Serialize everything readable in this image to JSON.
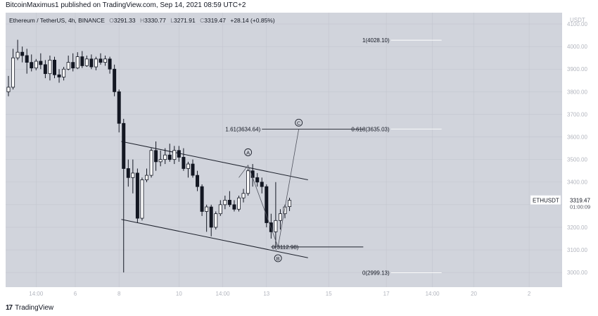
{
  "header": {
    "published_text": "BitcoinMaximus1 published on TradingView.com, Sep 14, 2021 08:59 UTC+2"
  },
  "legend": {
    "title": "Ethereum / TetherUS, 4h, BINANCE",
    "o_label": "O",
    "o_value": "3291.33",
    "h_label": "H",
    "h_value": "3330.77",
    "l_label": "L",
    "l_value": "3271.91",
    "c_label": "C",
    "c_value": "3319.47",
    "change": "+28.14 (+0.85%)"
  },
  "footer": {
    "brand": "TradingView",
    "logo": "tv-logo"
  },
  "colors": {
    "plot_bg": "#d1d4dc",
    "right_bg": "#ffffff",
    "grid": "#c3c6cf",
    "up_body": "#ffffff",
    "down_body": "#131722",
    "wick": "#131722",
    "line": "#1e222d",
    "label_text": "#131722",
    "axis_text": "#b2b5be"
  },
  "chart_data": {
    "type": "candlestick",
    "currency": "USDT",
    "ylim": [
      2935,
      4150
    ],
    "y_ticks": [
      4100,
      4000,
      3900,
      3800,
      3700,
      3600,
      3500,
      3400,
      3300,
      3200,
      3100,
      3000
    ],
    "y_tick_labels": [
      "4100.00",
      "4000.00",
      "3900.00",
      "3800.00",
      "3700.00",
      "3600.00",
      "3500.00",
      "3400.00",
      "3300.00",
      "3200.00",
      "3100.00",
      "3000.00"
    ],
    "x_ticks": [
      {
        "bar": 6,
        "label": "14:00"
      },
      {
        "bar": 14.5,
        "label": "6"
      },
      {
        "bar": 24,
        "label": "8"
      },
      {
        "bar": 37,
        "label": "10"
      },
      {
        "bar": 46.5,
        "label": "14:00"
      },
      {
        "bar": 56,
        "label": "13"
      },
      {
        "bar": 69.5,
        "label": "15"
      },
      {
        "bar": 82,
        "label": "17"
      },
      {
        "bar": 92,
        "label": "14:00"
      },
      {
        "bar": 101,
        "label": "20"
      },
      {
        "bar": 113,
        "label": "2"
      }
    ],
    "candles": [
      {
        "o": 3800,
        "h": 3870,
        "l": 3780,
        "c": 3820
      },
      {
        "o": 3820,
        "h": 3990,
        "l": 3810,
        "c": 3950
      },
      {
        "o": 3950,
        "h": 4030,
        "l": 3940,
        "c": 3975
      },
      {
        "o": 3975,
        "h": 4000,
        "l": 3930,
        "c": 3960
      },
      {
        "o": 3960,
        "h": 3990,
        "l": 3880,
        "c": 3930
      },
      {
        "o": 3930,
        "h": 3965,
        "l": 3890,
        "c": 3905
      },
      {
        "o": 3905,
        "h": 3945,
        "l": 3895,
        "c": 3935
      },
      {
        "o": 3935,
        "h": 3970,
        "l": 3900,
        "c": 3920
      },
      {
        "o": 3920,
        "h": 3940,
        "l": 3860,
        "c": 3880
      },
      {
        "o": 3880,
        "h": 3960,
        "l": 3850,
        "c": 3940
      },
      {
        "o": 3940,
        "h": 3955,
        "l": 3860,
        "c": 3875
      },
      {
        "o": 3875,
        "h": 3900,
        "l": 3840,
        "c": 3865
      },
      {
        "o": 3865,
        "h": 3910,
        "l": 3850,
        "c": 3900
      },
      {
        "o": 3900,
        "h": 3960,
        "l": 3895,
        "c": 3930
      },
      {
        "o": 3930,
        "h": 3970,
        "l": 3890,
        "c": 3905
      },
      {
        "o": 3905,
        "h": 3975,
        "l": 3900,
        "c": 3955
      },
      {
        "o": 3955,
        "h": 3980,
        "l": 3905,
        "c": 3915
      },
      {
        "o": 3915,
        "h": 3960,
        "l": 3910,
        "c": 3945
      },
      {
        "o": 3945,
        "h": 3965,
        "l": 3900,
        "c": 3910
      },
      {
        "o": 3910,
        "h": 3955,
        "l": 3895,
        "c": 3945
      },
      {
        "o": 3945,
        "h": 3970,
        "l": 3920,
        "c": 3930
      },
      {
        "o": 3930,
        "h": 3960,
        "l": 3915,
        "c": 3945
      },
      {
        "o": 3945,
        "h": 3955,
        "l": 3880,
        "c": 3900
      },
      {
        "o": 3900,
        "h": 3920,
        "l": 3780,
        "c": 3800
      },
      {
        "o": 3800,
        "h": 3810,
        "l": 3620,
        "c": 3660
      },
      {
        "o": 3660,
        "h": 3680,
        "l": 3000,
        "c": 3460
      },
      {
        "o": 3460,
        "h": 3500,
        "l": 3380,
        "c": 3420
      },
      {
        "o": 3420,
        "h": 3500,
        "l": 3350,
        "c": 3440
      },
      {
        "o": 3440,
        "h": 3460,
        "l": 3220,
        "c": 3240
      },
      {
        "o": 3240,
        "h": 3420,
        "l": 3230,
        "c": 3410
      },
      {
        "o": 3410,
        "h": 3460,
        "l": 3400,
        "c": 3430
      },
      {
        "o": 3430,
        "h": 3550,
        "l": 3420,
        "c": 3540
      },
      {
        "o": 3540,
        "h": 3580,
        "l": 3450,
        "c": 3490
      },
      {
        "o": 3490,
        "h": 3540,
        "l": 3470,
        "c": 3500
      },
      {
        "o": 3500,
        "h": 3550,
        "l": 3480,
        "c": 3520
      },
      {
        "o": 3520,
        "h": 3570,
        "l": 3490,
        "c": 3500
      },
      {
        "o": 3500,
        "h": 3560,
        "l": 3480,
        "c": 3540
      },
      {
        "o": 3540,
        "h": 3560,
        "l": 3490,
        "c": 3510
      },
      {
        "o": 3510,
        "h": 3550,
        "l": 3450,
        "c": 3460
      },
      {
        "o": 3460,
        "h": 3490,
        "l": 3420,
        "c": 3480
      },
      {
        "o": 3480,
        "h": 3500,
        "l": 3420,
        "c": 3430
      },
      {
        "o": 3430,
        "h": 3450,
        "l": 3360,
        "c": 3380
      },
      {
        "o": 3380,
        "h": 3390,
        "l": 3250,
        "c": 3270
      },
      {
        "o": 3270,
        "h": 3300,
        "l": 3180,
        "c": 3290
      },
      {
        "o": 3290,
        "h": 3300,
        "l": 3160,
        "c": 3200
      },
      {
        "o": 3200,
        "h": 3270,
        "l": 3190,
        "c": 3260
      },
      {
        "o": 3260,
        "h": 3320,
        "l": 3250,
        "c": 3300
      },
      {
        "o": 3300,
        "h": 3340,
        "l": 3280,
        "c": 3320
      },
      {
        "o": 3320,
        "h": 3360,
        "l": 3290,
        "c": 3300
      },
      {
        "o": 3300,
        "h": 3320,
        "l": 3270,
        "c": 3280
      },
      {
        "o": 3280,
        "h": 3340,
        "l": 3270,
        "c": 3330
      },
      {
        "o": 3330,
        "h": 3370,
        "l": 3310,
        "c": 3350
      },
      {
        "o": 3350,
        "h": 3460,
        "l": 3340,
        "c": 3450
      },
      {
        "o": 3450,
        "h": 3480,
        "l": 3380,
        "c": 3420
      },
      {
        "o": 3420,
        "h": 3440,
        "l": 3380,
        "c": 3400
      },
      {
        "o": 3400,
        "h": 3420,
        "l": 3350,
        "c": 3380
      },
      {
        "o": 3380,
        "h": 3390,
        "l": 3200,
        "c": 3220
      },
      {
        "o": 3220,
        "h": 3260,
        "l": 3150,
        "c": 3180
      },
      {
        "o": 3180,
        "h": 3400,
        "l": 3113,
        "c": 3230
      },
      {
        "o": 3230,
        "h": 3280,
        "l": 3190,
        "c": 3260
      },
      {
        "o": 3260,
        "h": 3300,
        "l": 3240,
        "c": 3290
      },
      {
        "o": 3291.33,
        "h": 3330.77,
        "l": 3271.91,
        "c": 3319.47
      }
    ],
    "channel": {
      "upper": [
        {
          "bar": 24.5,
          "y": 3580
        },
        {
          "bar": 65,
          "y": 3410
        }
      ],
      "lower": [
        {
          "bar": 24.5,
          "y": 3235
        },
        {
          "bar": 65,
          "y": 3065
        }
      ]
    },
    "wave_path": [
      {
        "bar": 50,
        "y": 3420
      },
      {
        "bar": 52,
        "y": 3475
      },
      {
        "bar": 58.5,
        "y": 3113
      },
      {
        "bar": 63,
        "y": 3634.64
      }
    ],
    "wave_labels": [
      {
        "text": "A",
        "bar": 52,
        "y": 3532
      },
      {
        "text": "B",
        "bar": 58.5,
        "y": 3063
      },
      {
        "text": "C",
        "bar": 63,
        "y": 3663
      }
    ],
    "levels": [
      {
        "label": "1(4028.10)",
        "y": 4028.1,
        "from_bar": 83,
        "to_bar": 94
      },
      {
        "label": "0.618(3635.03)",
        "y": 3635.03,
        "from_bar": 83,
        "to_bar": 94
      },
      {
        "label": "1.61(3634.64)",
        "y": 3634.64,
        "from_bar": 55,
        "to_bar": 77
      },
      {
        "label": "0(3112.98)",
        "y": 3112.98,
        "from_bar": 57,
        "to_bar": 77
      },
      {
        "label": "0(2999.13)",
        "y": 2999.13,
        "from_bar": 83,
        "to_bar": 94
      }
    ],
    "price_marker": {
      "symbol": "ETHUSDT",
      "price": "3319.47",
      "countdown": "01:00:09",
      "y": 3319.47
    }
  }
}
